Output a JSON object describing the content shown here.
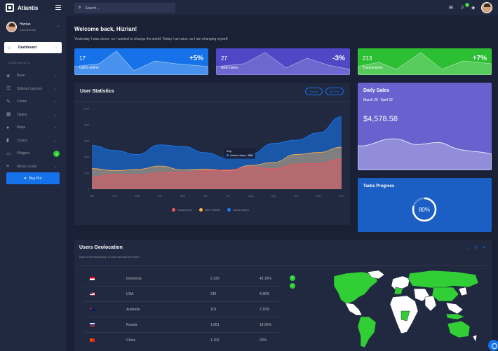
{
  "app": {
    "name": "Atlantis"
  },
  "search": {
    "placeholder": "Search ..."
  },
  "user": {
    "name": "Hizrian",
    "role": "Administrator"
  },
  "nav": {
    "active": "Dashboard",
    "section": "COMPONENTS",
    "items": [
      {
        "label": "Base",
        "icon": "layers-icon"
      },
      {
        "label": "Sidebar Layouts",
        "icon": "th-list-icon"
      },
      {
        "label": "Forms",
        "icon": "pen-icon"
      },
      {
        "label": "Tables",
        "icon": "table-icon"
      },
      {
        "label": "Maps",
        "icon": "map-marker-icon"
      },
      {
        "label": "Charts",
        "icon": "chart-bar-icon"
      },
      {
        "label": "Widgets",
        "icon": "desktop-icon",
        "badge": "4"
      },
      {
        "label": "Menu Levels",
        "icon": "bars-icon"
      }
    ],
    "buy_pro": "Buy Pro"
  },
  "header": {
    "notification_count": "4"
  },
  "welcome": {
    "title": "Welcome back, Hizrian!",
    "tagline": "Yesterday I was clever, so I wanted to change the world. Today I am wise, so I am changing myself."
  },
  "stats": [
    {
      "value": "17",
      "label": "Users online",
      "change": "+5%",
      "color": "#1572e8"
    },
    {
      "value": "27",
      "label": "New Users",
      "change": "-3%",
      "color": "#6861ce"
    },
    {
      "value": "213",
      "label": "Transactions",
      "change": "+7%",
      "color": "#31ce36"
    }
  ],
  "user_statistics": {
    "title": "User Statistics",
    "export_label": "Export",
    "print_label": "Print",
    "tooltip": {
      "month": "Sep",
      "text": "Active Users : 568"
    }
  },
  "chart_data": {
    "type": "area",
    "categories": [
      "Jan",
      "Feb",
      "Mar",
      "Apr",
      "May",
      "Jun",
      "Jul",
      "Aug",
      "Sep",
      "Oct",
      "Nov",
      "Dec"
    ],
    "ylim": [
      0,
      1000
    ],
    "yticks": [
      "0",
      "200",
      "400",
      "600",
      "800",
      "1000"
    ],
    "grid": true,
    "legend": "bottom",
    "series": [
      {
        "name": "Subscribers",
        "color": "#f3545d",
        "values": [
          154,
          184,
          175,
          203,
          210,
          231,
          240,
          278,
          252,
          312,
          320,
          374
        ]
      },
      {
        "name": "New Visitors",
        "color": "#fdaf4b",
        "values": [
          256,
          230,
          245,
          287,
          240,
          250,
          230,
          295,
          331,
          431,
          456,
          521
        ]
      },
      {
        "name": "Active Users",
        "color": "#177dff",
        "values": [
          542,
          480,
          430,
          550,
          530,
          453,
          380,
          434,
          568,
          610,
          700,
          900
        ]
      }
    ]
  },
  "daily_sales": {
    "title": "Daily Sales",
    "range": "March 25 - April 02",
    "amount": "$4,578.58"
  },
  "tasks": {
    "title": "Tasks Progress",
    "percent": "80%",
    "value": 0.8
  },
  "geolocation": {
    "title": "Users Geolocation",
    "subtitle": "Map of the distribution of users around the world",
    "rows": [
      {
        "country": "Indonesia",
        "count": "2.320",
        "percent": "42.18%"
      },
      {
        "country": "USA",
        "count": "240",
        "percent": "4.36%"
      },
      {
        "country": "Australia",
        "count": "119",
        "percent": "2.16%"
      },
      {
        "country": "Russia",
        "count": "1.081",
        "percent": "19.65%"
      },
      {
        "country": "China",
        "count": "1.100",
        "percent": "20%"
      }
    ]
  }
}
